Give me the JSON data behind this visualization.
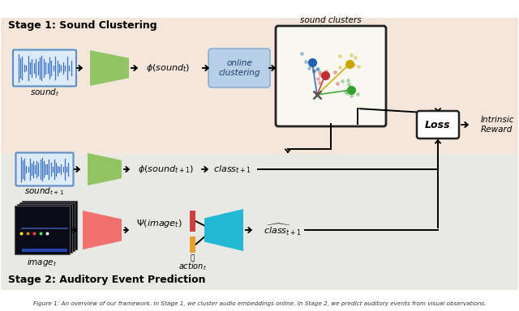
{
  "bg_stage1_color": "#f5e6dc",
  "bg_stage2_color": "#e8e8e4",
  "bg_overall": "#ffffff",
  "stage1_label": "Stage 1: Sound Clustering",
  "stage2_label": "Stage 2: Auditory Event Prediction",
  "caption": "Figure 1: An overview of our framework. In Stage 1, we cluster audio embeddings online. In Stage 2, we predict auditory events from visual observations.",
  "sound_cluster_label": "sound clusters",
  "online_cluster_label": "online\nclustering",
  "loss_label": "Loss",
  "intrinsic_reward_label": "Intrinsic\nReward",
  "phi_sound_t": "$\\phi(sound_t)$",
  "phi_sound_t1": "$\\phi(sound_{t+1})$",
  "psi_image_t": "$\\Psi(image_t)$",
  "class_t1_upper": "$class_{t+1}$",
  "class_t1_hat": "$\\widehat{class}_{t+1}$",
  "sound_t_label": "$sound_t$",
  "sound_t1_label": "$sound_{t+1}$",
  "image_t_label": "$image_t$",
  "action_t_label": "$action_t$",
  "green_color": "#92c464",
  "red_encoder_color": "#f07070",
  "cyan_decoder_color": "#22b8d4",
  "online_box_color": "#b8cfe8",
  "online_box_edge": "#8ab0d0",
  "bar_red_color": "#d04040",
  "bar_orange_color": "#e8a030",
  "cluster_blue": "#2060b0",
  "cluster_yellow": "#c8a800",
  "cluster_red": "#c03030",
  "cluster_green": "#30a030"
}
